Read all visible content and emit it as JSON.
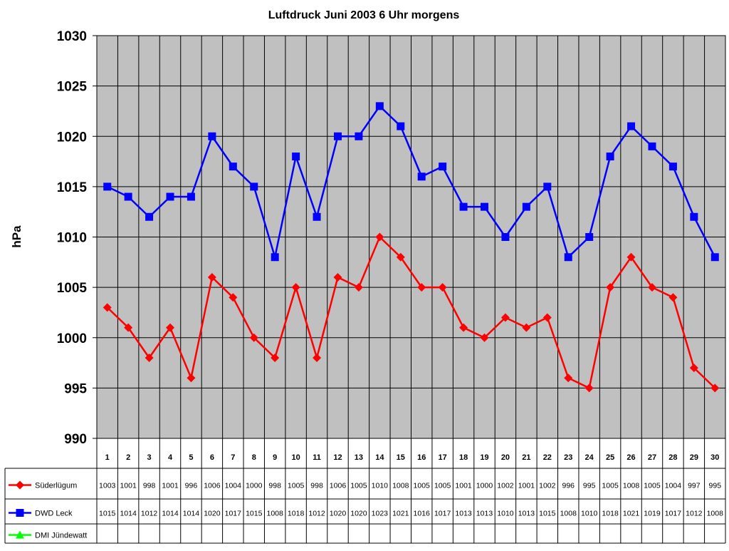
{
  "chart_data": {
    "type": "line",
    "title": "Luftdruck Juni 2003 6 Uhr morgens",
    "ylabel": "hPa",
    "xlabel": "",
    "ylim": [
      990,
      1030
    ],
    "y_ticks": [
      990,
      995,
      1000,
      1005,
      1010,
      1015,
      1020,
      1025,
      1030
    ],
    "categories": [
      "1",
      "2",
      "3",
      "4",
      "5",
      "6",
      "7",
      "8",
      "9",
      "10",
      "11",
      "12",
      "13",
      "14",
      "15",
      "16",
      "17",
      "18",
      "19",
      "20",
      "21",
      "22",
      "23",
      "24",
      "25",
      "26",
      "27",
      "28",
      "29",
      "30"
    ],
    "grid": true,
    "legend": "data-table-left",
    "plot_background": "#c0c0c0",
    "series": [
      {
        "name": "Süderlügum",
        "color": "#ff0000",
        "marker": "diamond",
        "values": [
          1003,
          1001,
          998,
          1001,
          996,
          1006,
          1004,
          1000,
          998,
          1005,
          998,
          1006,
          1005,
          1010,
          1008,
          1005,
          1005,
          1001,
          1000,
          1002,
          1001,
          1002,
          996,
          995,
          1005,
          1008,
          1005,
          1004,
          997,
          995
        ]
      },
      {
        "name": "DWD Leck",
        "color": "#0000ff",
        "marker": "square",
        "values": [
          1015,
          1014,
          1012,
          1014,
          1014,
          1020,
          1017,
          1015,
          1008,
          1018,
          1012,
          1020,
          1020,
          1023,
          1021,
          1016,
          1017,
          1013,
          1013,
          1010,
          1013,
          1015,
          1008,
          1010,
          1018,
          1021,
          1019,
          1017,
          1012,
          1008
        ]
      },
      {
        "name": "DMI Jündewatt",
        "color": "#00ff00",
        "marker": "triangle",
        "values": [
          null,
          null,
          null,
          null,
          null,
          null,
          null,
          null,
          null,
          null,
          null,
          null,
          null,
          null,
          null,
          null,
          null,
          null,
          null,
          null,
          null,
          null,
          null,
          null,
          null,
          null,
          null,
          null,
          null,
          null
        ]
      }
    ]
  }
}
